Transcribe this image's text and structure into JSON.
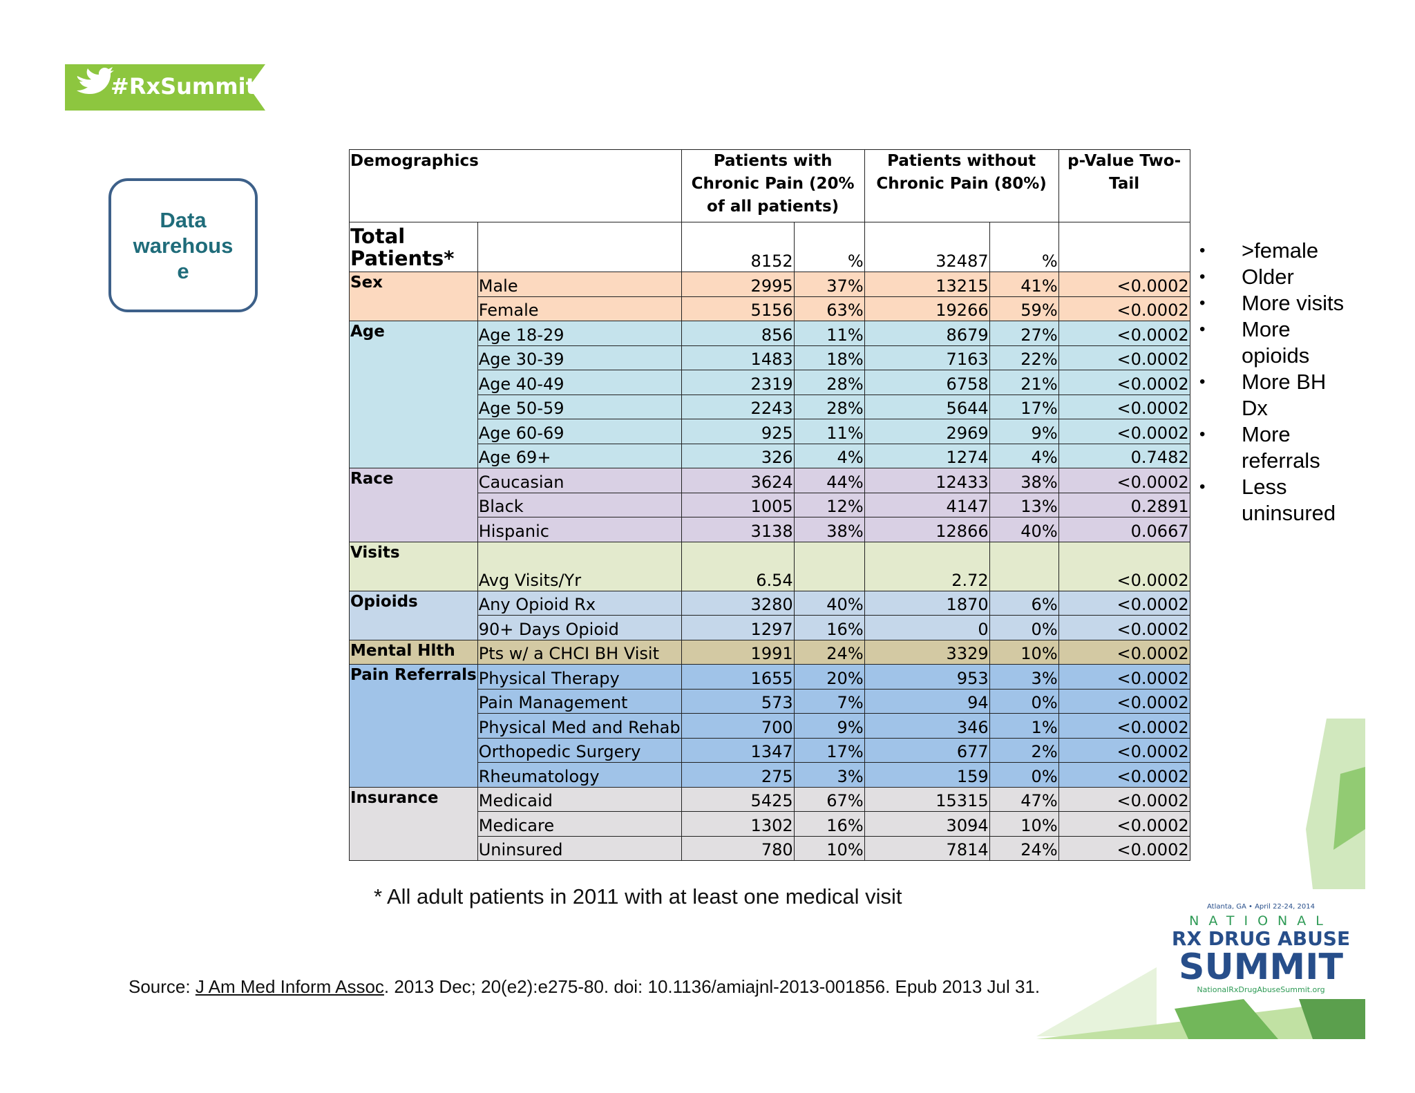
{
  "tag": "#RxSummit",
  "callout": "Data warehouse",
  "table": {
    "header": [
      "Demographics",
      "Patients with Chronic Pain (20% of all patients)",
      "Patients without Chronic Pain (80%)",
      "p-Value Two-Tail"
    ],
    "total": [
      "Total Patients*",
      "8152",
      "%",
      "32487",
      "%"
    ],
    "groups": [
      {
        "name": "Sex",
        "color": "#fcd9bf",
        "rows": [
          [
            "Male",
            "2995",
            "37%",
            "13215",
            "41%",
            "<0.0002"
          ],
          [
            "Female",
            "5156",
            "63%",
            "19266",
            "59%",
            "<0.0002"
          ]
        ]
      },
      {
        "name": "Age",
        "color": "#c5e3ec",
        "rows": [
          [
            "Age 18-29",
            "856",
            "11%",
            "8679",
            "27%",
            "<0.0002"
          ],
          [
            "Age 30-39",
            "1483",
            "18%",
            "7163",
            "22%",
            "<0.0002"
          ],
          [
            "Age 40-49",
            "2319",
            "28%",
            "6758",
            "21%",
            "<0.0002"
          ],
          [
            "Age 50-59",
            "2243",
            "28%",
            "5644",
            "17%",
            "<0.0002"
          ],
          [
            "Age 60-69",
            "925",
            "11%",
            "2969",
            "9%",
            "<0.0002"
          ],
          [
            "Age 69+",
            "326",
            "4%",
            "1274",
            "4%",
            "0.7482"
          ]
        ]
      },
      {
        "name": "Race",
        "color": "#d9d0e4",
        "rows": [
          [
            "Caucasian",
            "3624",
            "44%",
            "12433",
            "38%",
            "<0.0002"
          ],
          [
            "Black",
            "1005",
            "12%",
            "4147",
            "13%",
            "0.2891"
          ],
          [
            "Hispanic",
            "3138",
            "38%",
            "12866",
            "40%",
            "0.0667"
          ]
        ]
      },
      {
        "name": "Visits",
        "color": "#e3eacd",
        "tall": true,
        "rows": [
          [
            "Avg Visits/Yr",
            "6.54",
            null,
            "2.72",
            null,
            "<0.0002"
          ]
        ]
      },
      {
        "name": "Opioids",
        "color": "#c5d7ea",
        "rows": [
          [
            "Any Opioid Rx",
            "3280",
            "40%",
            "1870",
            "6%",
            "<0.0002"
          ],
          [
            "90+ Days Opioid",
            "1297",
            "16%",
            "0",
            "0%",
            "<0.0002"
          ]
        ]
      },
      {
        "name": "Mental Hlth",
        "color": "#d3c9a3",
        "rows": [
          [
            "Pts w/ a CHCI BH Visit",
            "1991",
            "24%",
            "3329",
            "10%",
            "<0.0002"
          ]
        ]
      },
      {
        "name": "Pain Referrals",
        "color": "#a0c3e8",
        "rows": [
          [
            "Physical Therapy",
            "1655",
            "20%",
            "953",
            "3%",
            "<0.0002"
          ],
          [
            "Pain Management",
            "573",
            "7%",
            "94",
            "0%",
            "<0.0002"
          ],
          [
            "Physical Med and Rehab",
            "700",
            "9%",
            "346",
            "1%",
            "<0.0002"
          ],
          [
            "Orthopedic Surgery",
            "1347",
            "17%",
            "677",
            "2%",
            "<0.0002"
          ],
          [
            "Rheumatology",
            "275",
            "3%",
            "159",
            "0%",
            "<0.0002"
          ]
        ]
      },
      {
        "name": "Insurance",
        "color": "#e1dfe1",
        "rows": [
          [
            "Medicaid",
            "5425",
            "67%",
            "15315",
            "47%",
            "<0.0002"
          ],
          [
            "Medicare",
            "1302",
            "16%",
            "3094",
            "10%",
            "<0.0002"
          ],
          [
            "Uninsured",
            "780",
            "10%",
            "7814",
            "24%",
            "<0.0002"
          ]
        ]
      }
    ]
  },
  "bullets": [
    ">female",
    "Older",
    "More visits",
    "More opioids",
    "More BH Dx",
    "More referrals",
    "Less uninsured"
  ],
  "footnote": "* All adult patients in 2011 with at least one medical visit",
  "source": {
    "prefix": "Source: ",
    "journal": "J Am Med Inform Assoc",
    "rest": ". 2013 Dec; 20(e2):e275-80. doi: 10.1136/amiajnl-2013-001856. Epub 2013 Jul 31."
  },
  "logo": {
    "line": "Atlanta, GA • April 22-24, 2014",
    "national": "NATIONAL",
    "name": "RX DRUG ABUSE",
    "summit": "SUMMIT",
    "url": "NationalRxDrugAbuseSummit.org"
  }
}
